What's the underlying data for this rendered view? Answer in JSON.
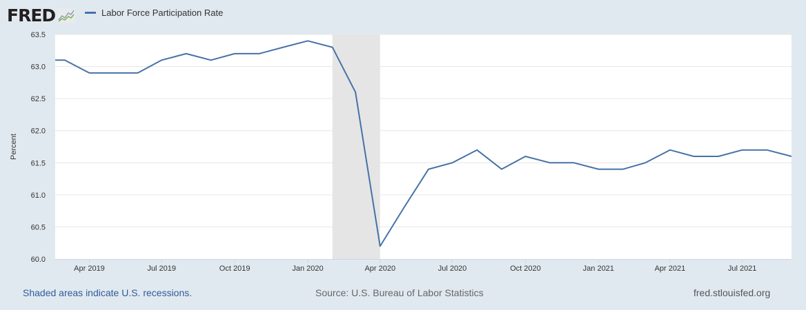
{
  "logo": {
    "text": "FRED"
  },
  "legend": {
    "series_name": "Labor Force Participation Rate"
  },
  "footer": {
    "recession_note": "Shaded areas indicate U.S. recessions.",
    "source": "Source: U.S. Bureau of Labor Statistics",
    "site": "fred.stlouisfed.org"
  },
  "colors": {
    "line": "#4572a7",
    "recession": "#e5e5e5",
    "background": "#e1e9f0",
    "plot": "#ffffff",
    "link": "#2f5b9a"
  },
  "chart_data": {
    "type": "line",
    "title": "",
    "ylabel": "Percent",
    "xlabel": "",
    "ylim": [
      60.0,
      63.5
    ],
    "xlim": [
      "2019-02-17",
      "2021-09-01"
    ],
    "grid": true,
    "legend_position": "top-left",
    "y_ticks": [
      "60.0",
      "60.5",
      "61.0",
      "61.5",
      "62.0",
      "62.5",
      "63.0",
      "63.5"
    ],
    "x_ticks": [
      {
        "date": "2019-04-01",
        "label": "Apr 2019"
      },
      {
        "date": "2019-07-01",
        "label": "Jul 2019"
      },
      {
        "date": "2019-10-01",
        "label": "Oct 2019"
      },
      {
        "date": "2020-01-01",
        "label": "Jan 2020"
      },
      {
        "date": "2020-04-01",
        "label": "Apr 2020"
      },
      {
        "date": "2020-07-01",
        "label": "Jul 2020"
      },
      {
        "date": "2020-10-01",
        "label": "Oct 2020"
      },
      {
        "date": "2021-01-01",
        "label": "Jan 2021"
      },
      {
        "date": "2021-04-01",
        "label": "Apr 2021"
      },
      {
        "date": "2021-07-01",
        "label": "Jul 2021"
      }
    ],
    "recessions": [
      {
        "start": "2020-02-01",
        "end": "2020-04-01"
      }
    ],
    "series": [
      {
        "name": "Labor Force Participation Rate",
        "x": [
          "2019-02-01",
          "2019-03-01",
          "2019-04-01",
          "2019-05-01",
          "2019-06-01",
          "2019-07-01",
          "2019-08-01",
          "2019-09-01",
          "2019-10-01",
          "2019-11-01",
          "2019-12-01",
          "2020-01-01",
          "2020-02-01",
          "2020-03-01",
          "2020-04-01",
          "2020-05-01",
          "2020-06-01",
          "2020-07-01",
          "2020-08-01",
          "2020-09-01",
          "2020-10-01",
          "2020-11-01",
          "2020-12-01",
          "2021-01-01",
          "2021-02-01",
          "2021-03-01",
          "2021-04-01",
          "2021-05-01",
          "2021-06-01",
          "2021-07-01",
          "2021-08-01",
          "2021-09-01"
        ],
        "values": [
          63.1,
          63.1,
          62.9,
          62.9,
          62.9,
          63.1,
          63.2,
          63.1,
          63.2,
          63.2,
          63.3,
          63.4,
          63.3,
          62.6,
          60.2,
          60.8,
          61.4,
          61.5,
          61.7,
          61.4,
          61.6,
          61.5,
          61.5,
          61.4,
          61.4,
          61.5,
          61.7,
          61.6,
          61.6,
          61.7,
          61.7,
          61.6
        ]
      }
    ]
  }
}
